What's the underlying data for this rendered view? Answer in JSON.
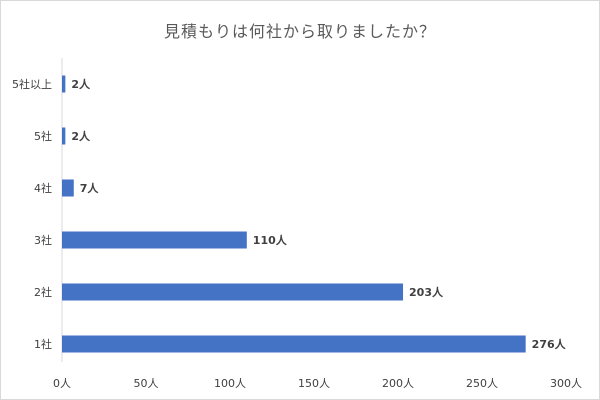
{
  "chart_data": {
    "type": "bar",
    "orientation": "horizontal",
    "title": "見積もりは何社から取りましたか？",
    "categories": [
      "5社以上",
      "5社",
      "4社",
      "3社",
      "2社",
      "1社"
    ],
    "values": [
      2,
      2,
      7,
      110,
      203,
      276
    ],
    "data_labels": [
      "2人",
      "2人",
      "7人",
      "110人",
      "203人",
      "276人"
    ],
    "x_ticks": [
      "0人",
      "50人",
      "100人",
      "150人",
      "200人",
      "250人",
      "300人"
    ],
    "xlim": [
      0,
      300
    ],
    "grid": false,
    "bar_color": "#4472c4",
    "text_color": "#404040"
  }
}
